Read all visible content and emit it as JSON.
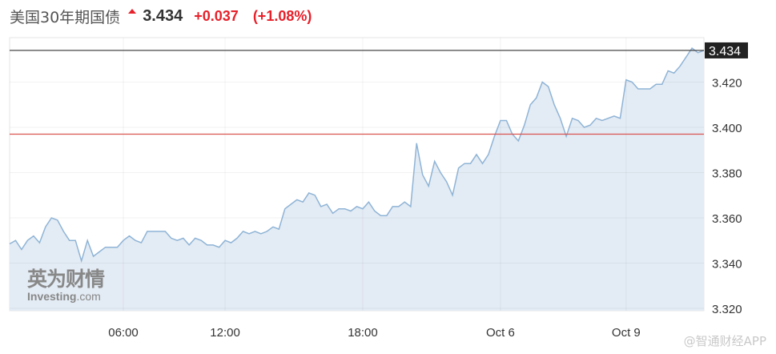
{
  "header": {
    "title": "美国30年期国债",
    "direction_icon": "up-arrow-icon",
    "last": "3.434",
    "change": "+0.037",
    "change_pct": "(+1.08%)",
    "up_color": "#e8202a"
  },
  "logo": {
    "cn": "英为财情",
    "en_bold": "Investing",
    "en_light": ".com"
  },
  "watermark": "@智通财经APP",
  "chart_data": {
    "type": "area",
    "title": "",
    "xlabel": "",
    "ylabel": "",
    "ylim": [
      3.32,
      3.44
    ],
    "y_ticks": [
      "3.320",
      "3.340",
      "3.360",
      "3.380",
      "3.400",
      "3.420"
    ],
    "x_ticks": [
      {
        "label": "06:00",
        "index": 19
      },
      {
        "label": "12:00",
        "index": 36
      },
      {
        "label": "18:00",
        "index": 59
      },
      {
        "label": "Oct 6",
        "index": 82
      },
      {
        "label": "Oct 9",
        "index": 103
      }
    ],
    "grid": true,
    "line_color": "#8fb4d6",
    "fill_color": "#e3ebf4",
    "current_value": {
      "value": 3.434,
      "label": "3.434",
      "color": "#333333"
    },
    "previous_close": {
      "value": 3.397,
      "color": "#d9534f"
    },
    "values": [
      3.3485,
      3.35,
      3.346,
      3.35,
      3.352,
      3.349,
      3.356,
      3.36,
      3.359,
      3.354,
      3.35,
      3.35,
      3.341,
      3.35,
      3.343,
      3.345,
      3.347,
      3.347,
      3.347,
      3.35,
      3.352,
      3.35,
      3.349,
      3.354,
      3.354,
      3.354,
      3.354,
      3.351,
      3.35,
      3.351,
      3.348,
      3.351,
      3.35,
      3.348,
      3.348,
      3.347,
      3.35,
      3.349,
      3.351,
      3.354,
      3.353,
      3.354,
      3.353,
      3.354,
      3.356,
      3.355,
      3.364,
      3.366,
      3.368,
      3.367,
      3.371,
      3.37,
      3.365,
      3.366,
      3.362,
      3.364,
      3.364,
      3.363,
      3.365,
      3.364,
      3.367,
      3.363,
      3.361,
      3.361,
      3.365,
      3.365,
      3.367,
      3.365,
      3.393,
      3.379,
      3.374,
      3.385,
      3.38,
      3.376,
      3.37,
      3.382,
      3.384,
      3.384,
      3.388,
      3.384,
      3.388,
      3.396,
      3.403,
      3.403,
      3.397,
      3.394,
      3.401,
      3.41,
      3.413,
      3.42,
      3.418,
      3.41,
      3.404,
      3.396,
      3.404,
      3.403,
      3.4,
      3.401,
      3.404,
      3.403,
      3.404,
      3.405,
      3.404,
      3.421,
      3.42,
      3.417,
      3.417,
      3.417,
      3.419,
      3.419,
      3.425,
      3.424,
      3.427,
      3.431,
      3.435,
      3.433,
      3.434
    ]
  }
}
